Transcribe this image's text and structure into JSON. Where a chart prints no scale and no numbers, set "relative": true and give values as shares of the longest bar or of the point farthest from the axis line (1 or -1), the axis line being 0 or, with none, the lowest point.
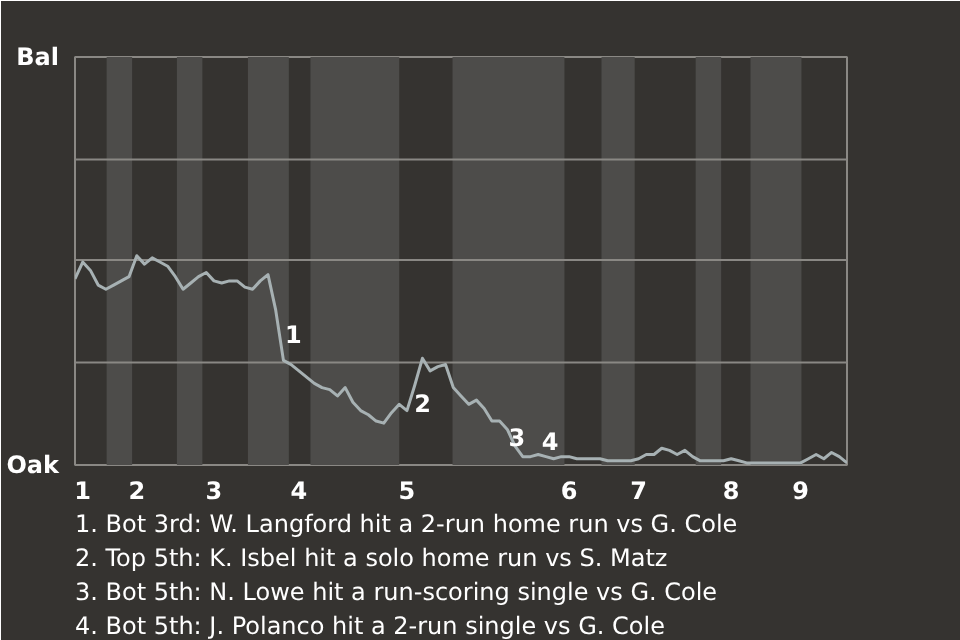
{
  "chart_data": {
    "type": "line",
    "relative": true,
    "categories": [
      null,
      "1",
      null,
      null,
      null,
      null,
      null,
      null,
      "2",
      null,
      null,
      null,
      null,
      null,
      null,
      null,
      null,
      null,
      "3",
      null,
      null,
      null,
      null,
      null,
      null,
      null,
      null,
      null,
      null,
      "4",
      null,
      null,
      null,
      null,
      null,
      null,
      null,
      null,
      null,
      null,
      null,
      null,
      null,
      "5",
      null,
      null,
      null,
      null,
      null,
      null,
      null,
      null,
      null,
      null,
      null,
      null,
      null,
      null,
      null,
      null,
      null,
      null,
      null,
      null,
      "6",
      null,
      null,
      null,
      null,
      null,
      null,
      null,
      null,
      "7",
      null,
      null,
      null,
      null,
      null,
      null,
      null,
      null,
      null,
      null,
      null,
      "8",
      null,
      null,
      null,
      null,
      null,
      null,
      null,
      null,
      "9",
      null,
      null,
      null,
      null,
      null,
      null
    ],
    "series": [
      {
        "color": "#a7b1b3",
        "values": [
          0.89,
          0.97,
          0.93,
          0.86,
          0.84,
          0.86,
          0.88,
          0.9,
          1.0,
          0.96,
          0.99,
          0.97,
          0.95,
          0.9,
          0.84,
          0.87,
          0.9,
          0.92,
          0.88,
          0.87,
          0.88,
          0.88,
          0.85,
          0.84,
          0.88,
          0.91,
          0.74,
          0.5,
          0.48,
          0.45,
          0.42,
          0.39,
          0.37,
          0.36,
          0.33,
          0.37,
          0.3,
          0.26,
          0.24,
          0.21,
          0.2,
          0.25,
          0.29,
          0.26,
          0.38,
          0.51,
          0.45,
          0.47,
          0.48,
          0.37,
          0.33,
          0.29,
          0.31,
          0.27,
          0.21,
          0.21,
          0.17,
          0.09,
          0.04,
          0.04,
          0.05,
          0.04,
          0.03,
          0.04,
          0.04,
          0.03,
          0.03,
          0.03,
          0.03,
          0.02,
          0.02,
          0.02,
          0.02,
          0.03,
          0.05,
          0.05,
          0.08,
          0.07,
          0.05,
          0.07,
          0.04,
          0.02,
          0.02,
          0.02,
          0.02,
          0.03,
          0.02,
          0.01,
          0.01,
          0.01,
          0.01,
          0.01,
          0.01,
          0.01,
          0.01,
          0.03,
          0.05,
          0.03,
          0.06,
          0.04,
          0.01
        ]
      }
    ],
    "ref_lines": [
      {
        "axis": "y",
        "value": 0.49,
        "color": "#8a8884"
      },
      {
        "axis": "y",
        "value": 0.98,
        "color": "#8a8884"
      },
      {
        "axis": "y",
        "value": 1.46,
        "color": "#8a8884"
      }
    ],
    "annotations": [
      "Bal",
      "Oak",
      {
        "text": "1",
        "y": 0.5
      },
      {
        "text": "2",
        "y": 0.38
      },
      {
        "text": "3",
        "y": 0.04
      },
      {
        "text": "4",
        "y": 0.05
      },
      "1. Bot 3rd: W. Langford hit a 2-run home run vs G. Cole",
      "2. Top 5th: K. Isbel hit a solo home run vs S. Matz",
      "3. Bot 5th: N. Lowe hit a run-scoring single vs G. Cole",
      "4. Bot 5th: J. Polanco hit a 2-run single vs G. Cole"
    ]
  }
}
